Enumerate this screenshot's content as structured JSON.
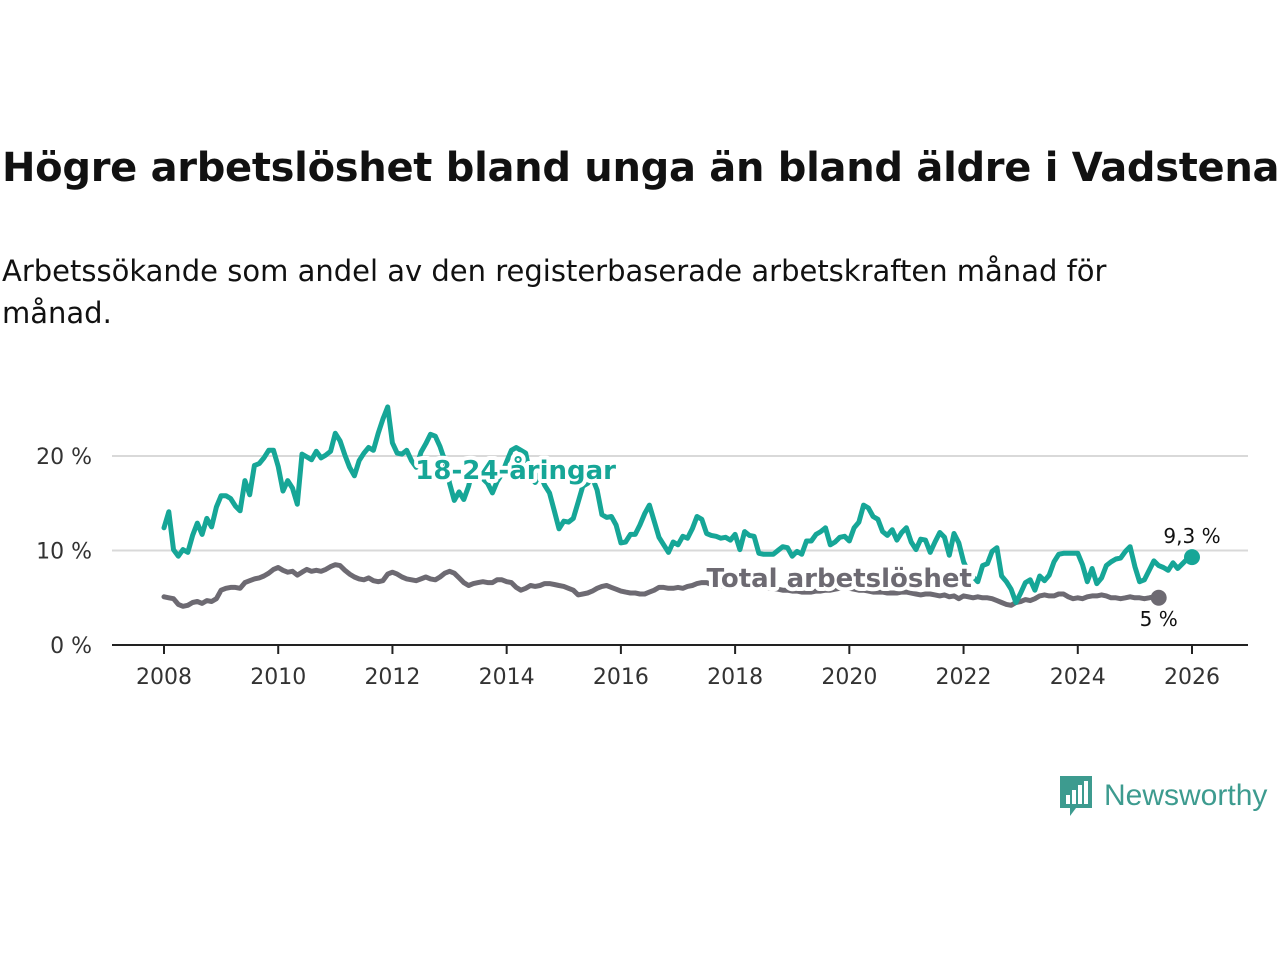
{
  "title": "Högre arbetslöshet bland unga än bland äldre i Vadstena",
  "subtitle": "Arbetssökande som andel av den registerbaserade arbetskraften månad för månad.",
  "brand": {
    "name": "Newsworthy",
    "color": "#3d9b8f"
  },
  "chart_data": {
    "type": "line",
    "title": "Högre arbetslöshet bland unga än bland äldre i Vadstena",
    "xlabel": "",
    "ylabel": "",
    "xlim": [
      2008,
      2026
    ],
    "ylim": [
      0,
      25
    ],
    "x_ticks": [
      2008,
      2010,
      2012,
      2014,
      2016,
      2018,
      2020,
      2022,
      2024,
      2026
    ],
    "x_tick_labels": [
      "2008",
      "2010",
      "2012",
      "2014",
      "2016",
      "2018",
      "2020",
      "2022",
      "2024",
      "2026"
    ],
    "y_ticks": [
      0,
      10,
      20
    ],
    "y_tick_labels": [
      "0 %",
      "10 %",
      "20 %"
    ],
    "grid": true,
    "x_step": 0.0833333,
    "series": [
      {
        "name": "18-24-åringar",
        "label": "18-24-åringar",
        "color": "#16a697",
        "end_label": "9,3 %",
        "x_start": 2008.0,
        "values": [
          12.4,
          14.1,
          10.1,
          9.4,
          10.1,
          9.8,
          11.6,
          12.9,
          11.7,
          13.4,
          12.5,
          14.6,
          15.8,
          15.8,
          15.5,
          14.7,
          14.2,
          17.4,
          15.9,
          19.0,
          19.2,
          19.8,
          20.6,
          20.6,
          18.9,
          16.3,
          17.4,
          16.6,
          14.9,
          20.2,
          19.9,
          19.6,
          20.5,
          19.8,
          20.1,
          20.5,
          22.4,
          21.6,
          20.1,
          18.8,
          17.9,
          19.5,
          20.3,
          20.9,
          20.6,
          22.4,
          23.9,
          25.2,
          21.4,
          20.3,
          20.2,
          20.6,
          19.5,
          18.8,
          20.4,
          21.3,
          22.3,
          22.1,
          21.0,
          19.5,
          17.1,
          15.3,
          16.2,
          15.4,
          16.8,
          18.9,
          18.2,
          17.6,
          17.1,
          16.1,
          17.3,
          18.1,
          19.4,
          20.6,
          20.9,
          20.6,
          20.3,
          17.8,
          17.2,
          18.1,
          16.9,
          16.1,
          14.2,
          12.3,
          13.1,
          13.0,
          13.4,
          15.1,
          16.8,
          17.1,
          17.7,
          16.4,
          13.8,
          13.5,
          13.6,
          12.7,
          10.8,
          10.9,
          11.7,
          11.7,
          12.7,
          13.9,
          14.8,
          13.1,
          11.4,
          10.6,
          9.8,
          10.9,
          10.6,
          11.5,
          11.3,
          12.3,
          13.6,
          13.3,
          11.8,
          11.6,
          11.5,
          11.3,
          11.4,
          11.1,
          11.7,
          10.1,
          12.0,
          11.6,
          11.5,
          9.7,
          9.6,
          9.6,
          9.6,
          10.0,
          10.4,
          10.3,
          9.4,
          9.9,
          9.6,
          11.0,
          11.0,
          11.7,
          12.0,
          12.4,
          10.6,
          10.9,
          11.4,
          11.5,
          11.0,
          12.4,
          13.0,
          14.8,
          14.5,
          13.6,
          13.3,
          12.0,
          11.6,
          12.2,
          11.1,
          11.9,
          12.4,
          10.9,
          10.1,
          11.2,
          11.1,
          9.8,
          10.9,
          11.9,
          11.4,
          9.5,
          11.8,
          10.8,
          8.8,
          7.7,
          7.2,
          6.7,
          8.4,
          8.6,
          9.9,
          10.3,
          7.3,
          6.7,
          5.9,
          4.5,
          5.5,
          6.6,
          6.9,
          5.8,
          7.3,
          6.8,
          7.4,
          8.8,
          9.6,
          9.7,
          9.7,
          9.7,
          9.7,
          8.5,
          6.7,
          8.1,
          6.5,
          7.1,
          8.4,
          8.8,
          9.1,
          9.2,
          9.9,
          10.4,
          8.3,
          6.7,
          6.9,
          7.9,
          8.9,
          8.4,
          8.2,
          7.9,
          8.7,
          8.1,
          8.6,
          9.1,
          9.3
        ]
      },
      {
        "name": "Total arbetslöshet",
        "label": "Total arbetslöshet",
        "color": "#6d6a72",
        "end_label": "5 %",
        "x_start": 2008.0,
        "values": [
          5.1,
          5.0,
          4.9,
          4.3,
          4.1,
          4.2,
          4.5,
          4.6,
          4.4,
          4.7,
          4.6,
          4.9,
          5.8,
          6.0,
          6.1,
          6.1,
          6.0,
          6.6,
          6.8,
          7.0,
          7.1,
          7.3,
          7.6,
          8.0,
          8.2,
          7.9,
          7.7,
          7.8,
          7.4,
          7.7,
          8.0,
          7.8,
          7.9,
          7.8,
          8.0,
          8.3,
          8.5,
          8.4,
          7.9,
          7.5,
          7.2,
          7.0,
          6.9,
          7.1,
          6.8,
          6.7,
          6.8,
          7.5,
          7.7,
          7.5,
          7.2,
          7.0,
          6.9,
          6.8,
          7.0,
          7.2,
          7.0,
          6.9,
          7.2,
          7.6,
          7.8,
          7.6,
          7.1,
          6.6,
          6.3,
          6.5,
          6.6,
          6.7,
          6.6,
          6.6,
          6.9,
          6.9,
          6.7,
          6.6,
          6.1,
          5.8,
          6.0,
          6.3,
          6.2,
          6.3,
          6.5,
          6.5,
          6.4,
          6.3,
          6.2,
          6.0,
          5.8,
          5.3,
          5.4,
          5.5,
          5.7,
          6.0,
          6.2,
          6.3,
          6.1,
          5.9,
          5.7,
          5.6,
          5.5,
          5.5,
          5.4,
          5.4,
          5.6,
          5.8,
          6.1,
          6.1,
          6.0,
          6.0,
          6.1,
          6.0,
          6.2,
          6.3,
          6.5,
          6.6,
          6.6,
          6.4,
          6.3,
          6.2,
          6.3,
          6.4,
          6.5,
          6.5,
          6.6,
          6.4,
          6.3,
          6.2,
          6.1,
          6.0,
          6.0,
          5.9,
          5.8,
          5.8,
          5.7,
          5.7,
          5.6,
          5.6,
          5.6,
          5.7,
          5.7,
          5.8,
          5.8,
          5.9,
          6.0,
          6.1,
          6.0,
          5.9,
          5.8,
          5.8,
          5.7,
          5.6,
          5.6,
          5.6,
          5.5,
          5.5,
          5.5,
          5.6,
          5.6,
          5.5,
          5.4,
          5.3,
          5.4,
          5.4,
          5.3,
          5.2,
          5.3,
          5.1,
          5.2,
          4.9,
          5.2,
          5.1,
          5.0,
          5.1,
          5.0,
          5.0,
          4.9,
          4.7,
          4.5,
          4.3,
          4.2,
          4.5,
          4.6,
          4.8,
          4.7,
          4.9,
          5.2,
          5.3,
          5.2,
          5.2,
          5.4,
          5.4,
          5.1,
          4.9,
          5.0,
          4.9,
          5.1,
          5.2,
          5.2,
          5.3,
          5.2,
          5.0,
          5.0,
          4.9,
          5.0,
          5.1,
          5.0,
          5.0,
          4.9,
          5.0,
          5.1,
          5.0
        ]
      }
    ]
  }
}
